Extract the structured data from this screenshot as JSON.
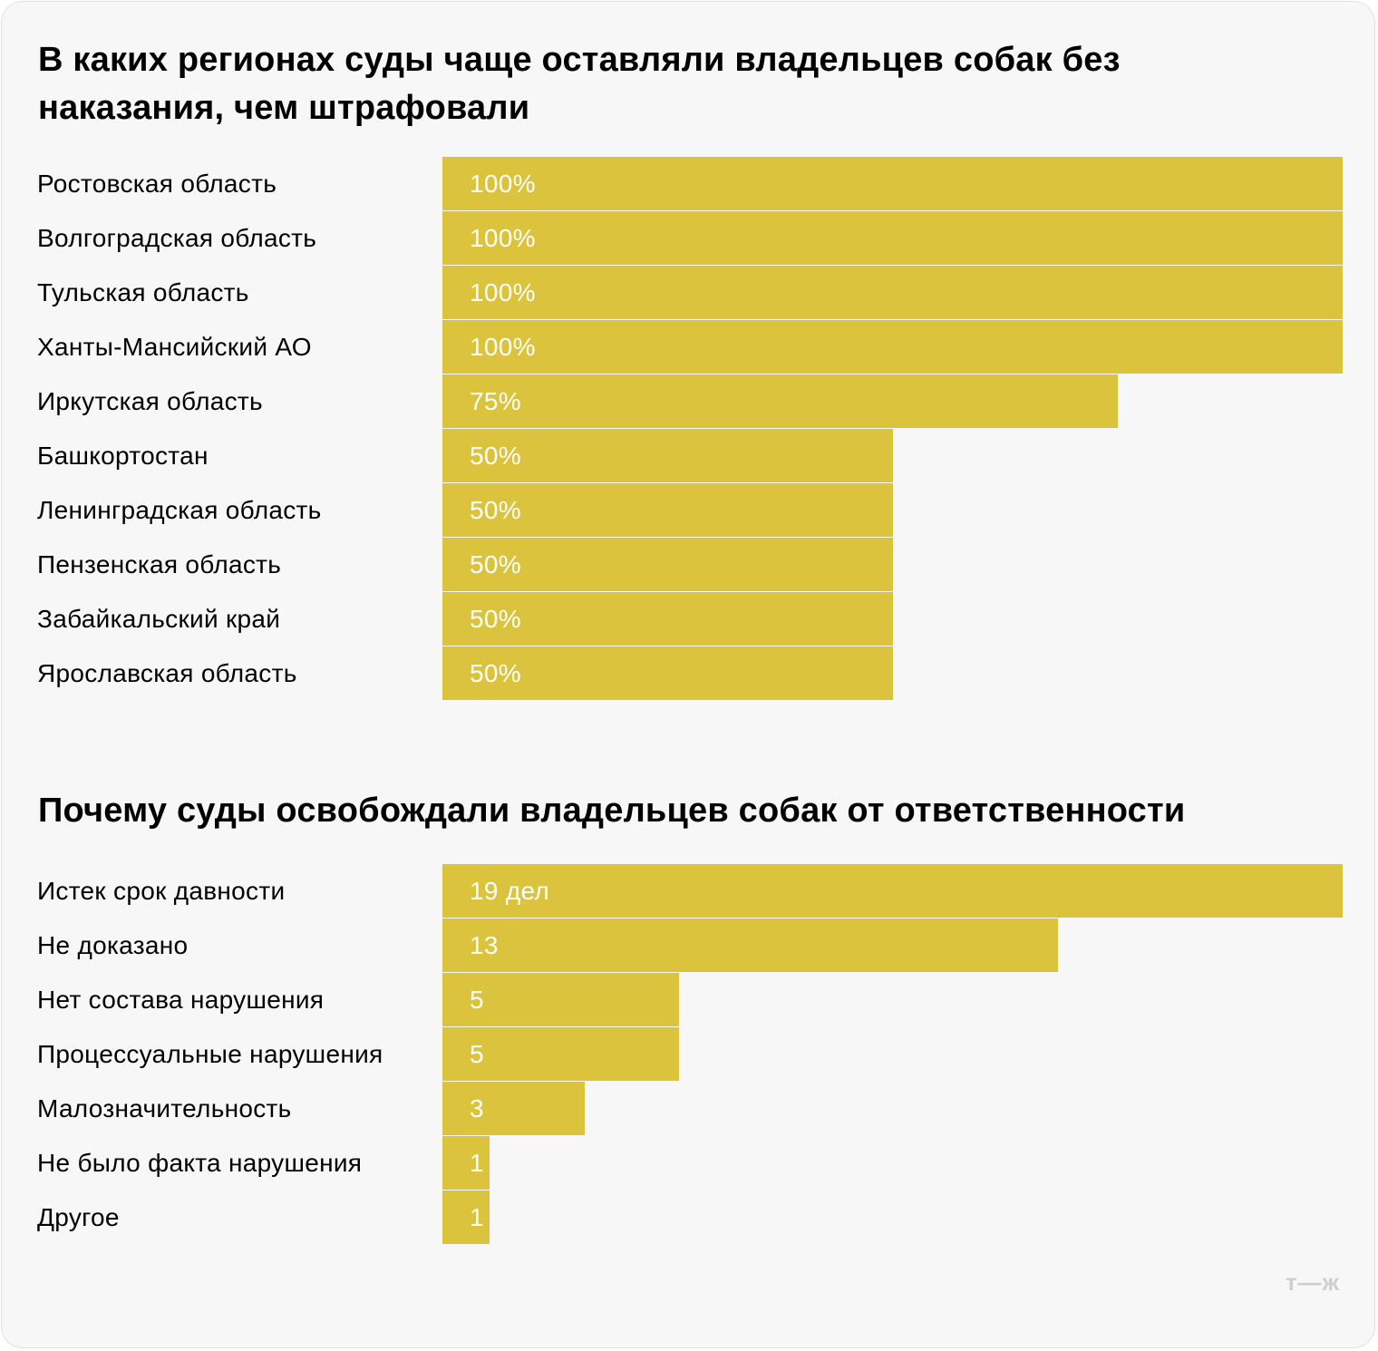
{
  "chart_data": [
    {
      "type": "bar",
      "orientation": "horizontal",
      "title": "В каких регионах суды чаще оставляли владельцев собак без наказания, чем штрафовали",
      "categories": [
        "Ростовская область",
        "Волгоградская область",
        "Тульская область",
        "Ханты-Мансийский АО",
        "Иркутская область",
        "Башкортостан",
        "Ленинградская область",
        "Пензенская область",
        "Забайкальский край",
        "Ярославская область"
      ],
      "values": [
        100,
        100,
        100,
        100,
        75,
        50,
        50,
        50,
        50,
        50
      ],
      "value_labels": [
        "100%",
        "100%",
        "100%",
        "100%",
        "75%",
        "50%",
        "50%",
        "50%",
        "50%",
        "50%"
      ],
      "xlim": [
        0,
        100
      ],
      "unit": "%",
      "color": "#dbc33e",
      "grid": false,
      "legend": "none"
    },
    {
      "type": "bar",
      "orientation": "horizontal",
      "title": "Почему суды освобождали владельцев собак от ответственности",
      "categories": [
        "Истек срок давности",
        "Не доказано",
        "Нет состава нарушения",
        "Процессуальные нарушения",
        "Малозначительность",
        "Не было факта нарушения",
        "Другое"
      ],
      "values": [
        19,
        13,
        5,
        5,
        3,
        1,
        1
      ],
      "value_labels": [
        "19 дел",
        "13",
        "5",
        "5",
        "3",
        "1",
        "1"
      ],
      "xlim": [
        0,
        19
      ],
      "unit": "дел",
      "color": "#dbc33e",
      "grid": false,
      "legend": "none"
    }
  ],
  "brand": {
    "logo_text": "т—ж",
    "logo_color": "#cfcfcf"
  },
  "colors": {
    "background": "#f7f7f7",
    "bar": "#dbc33e",
    "value_text": "#ffffff",
    "label_text": "#000000"
  }
}
